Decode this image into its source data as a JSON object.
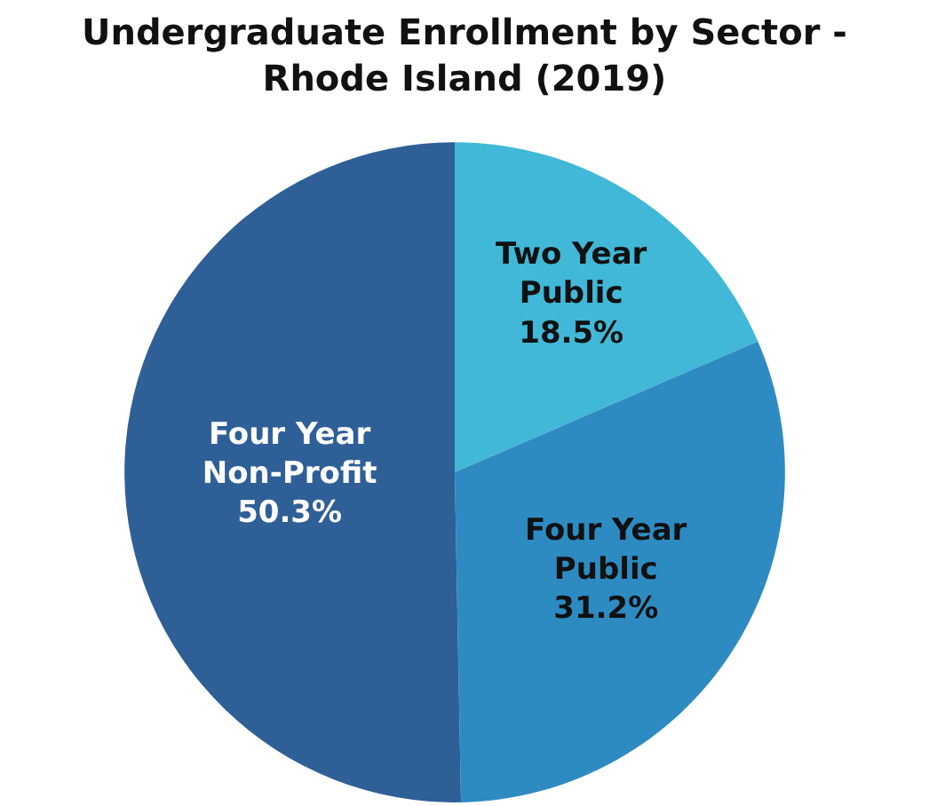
{
  "chart_data": {
    "type": "pie",
    "title": "Undergraduate Enrollment by Sector - Rhode Island (2019)",
    "categories": [
      "Two Year Public",
      "Four Year Public",
      "Four Year Non-Profit"
    ],
    "values": [
      18.5,
      31.2,
      50.3
    ],
    "colors": [
      "#41b8d8",
      "#2e8bc2",
      "#2f5f97"
    ],
    "value_labels": [
      "18.5%",
      "31.2%",
      "50.3%"
    ],
    "legend": false
  }
}
